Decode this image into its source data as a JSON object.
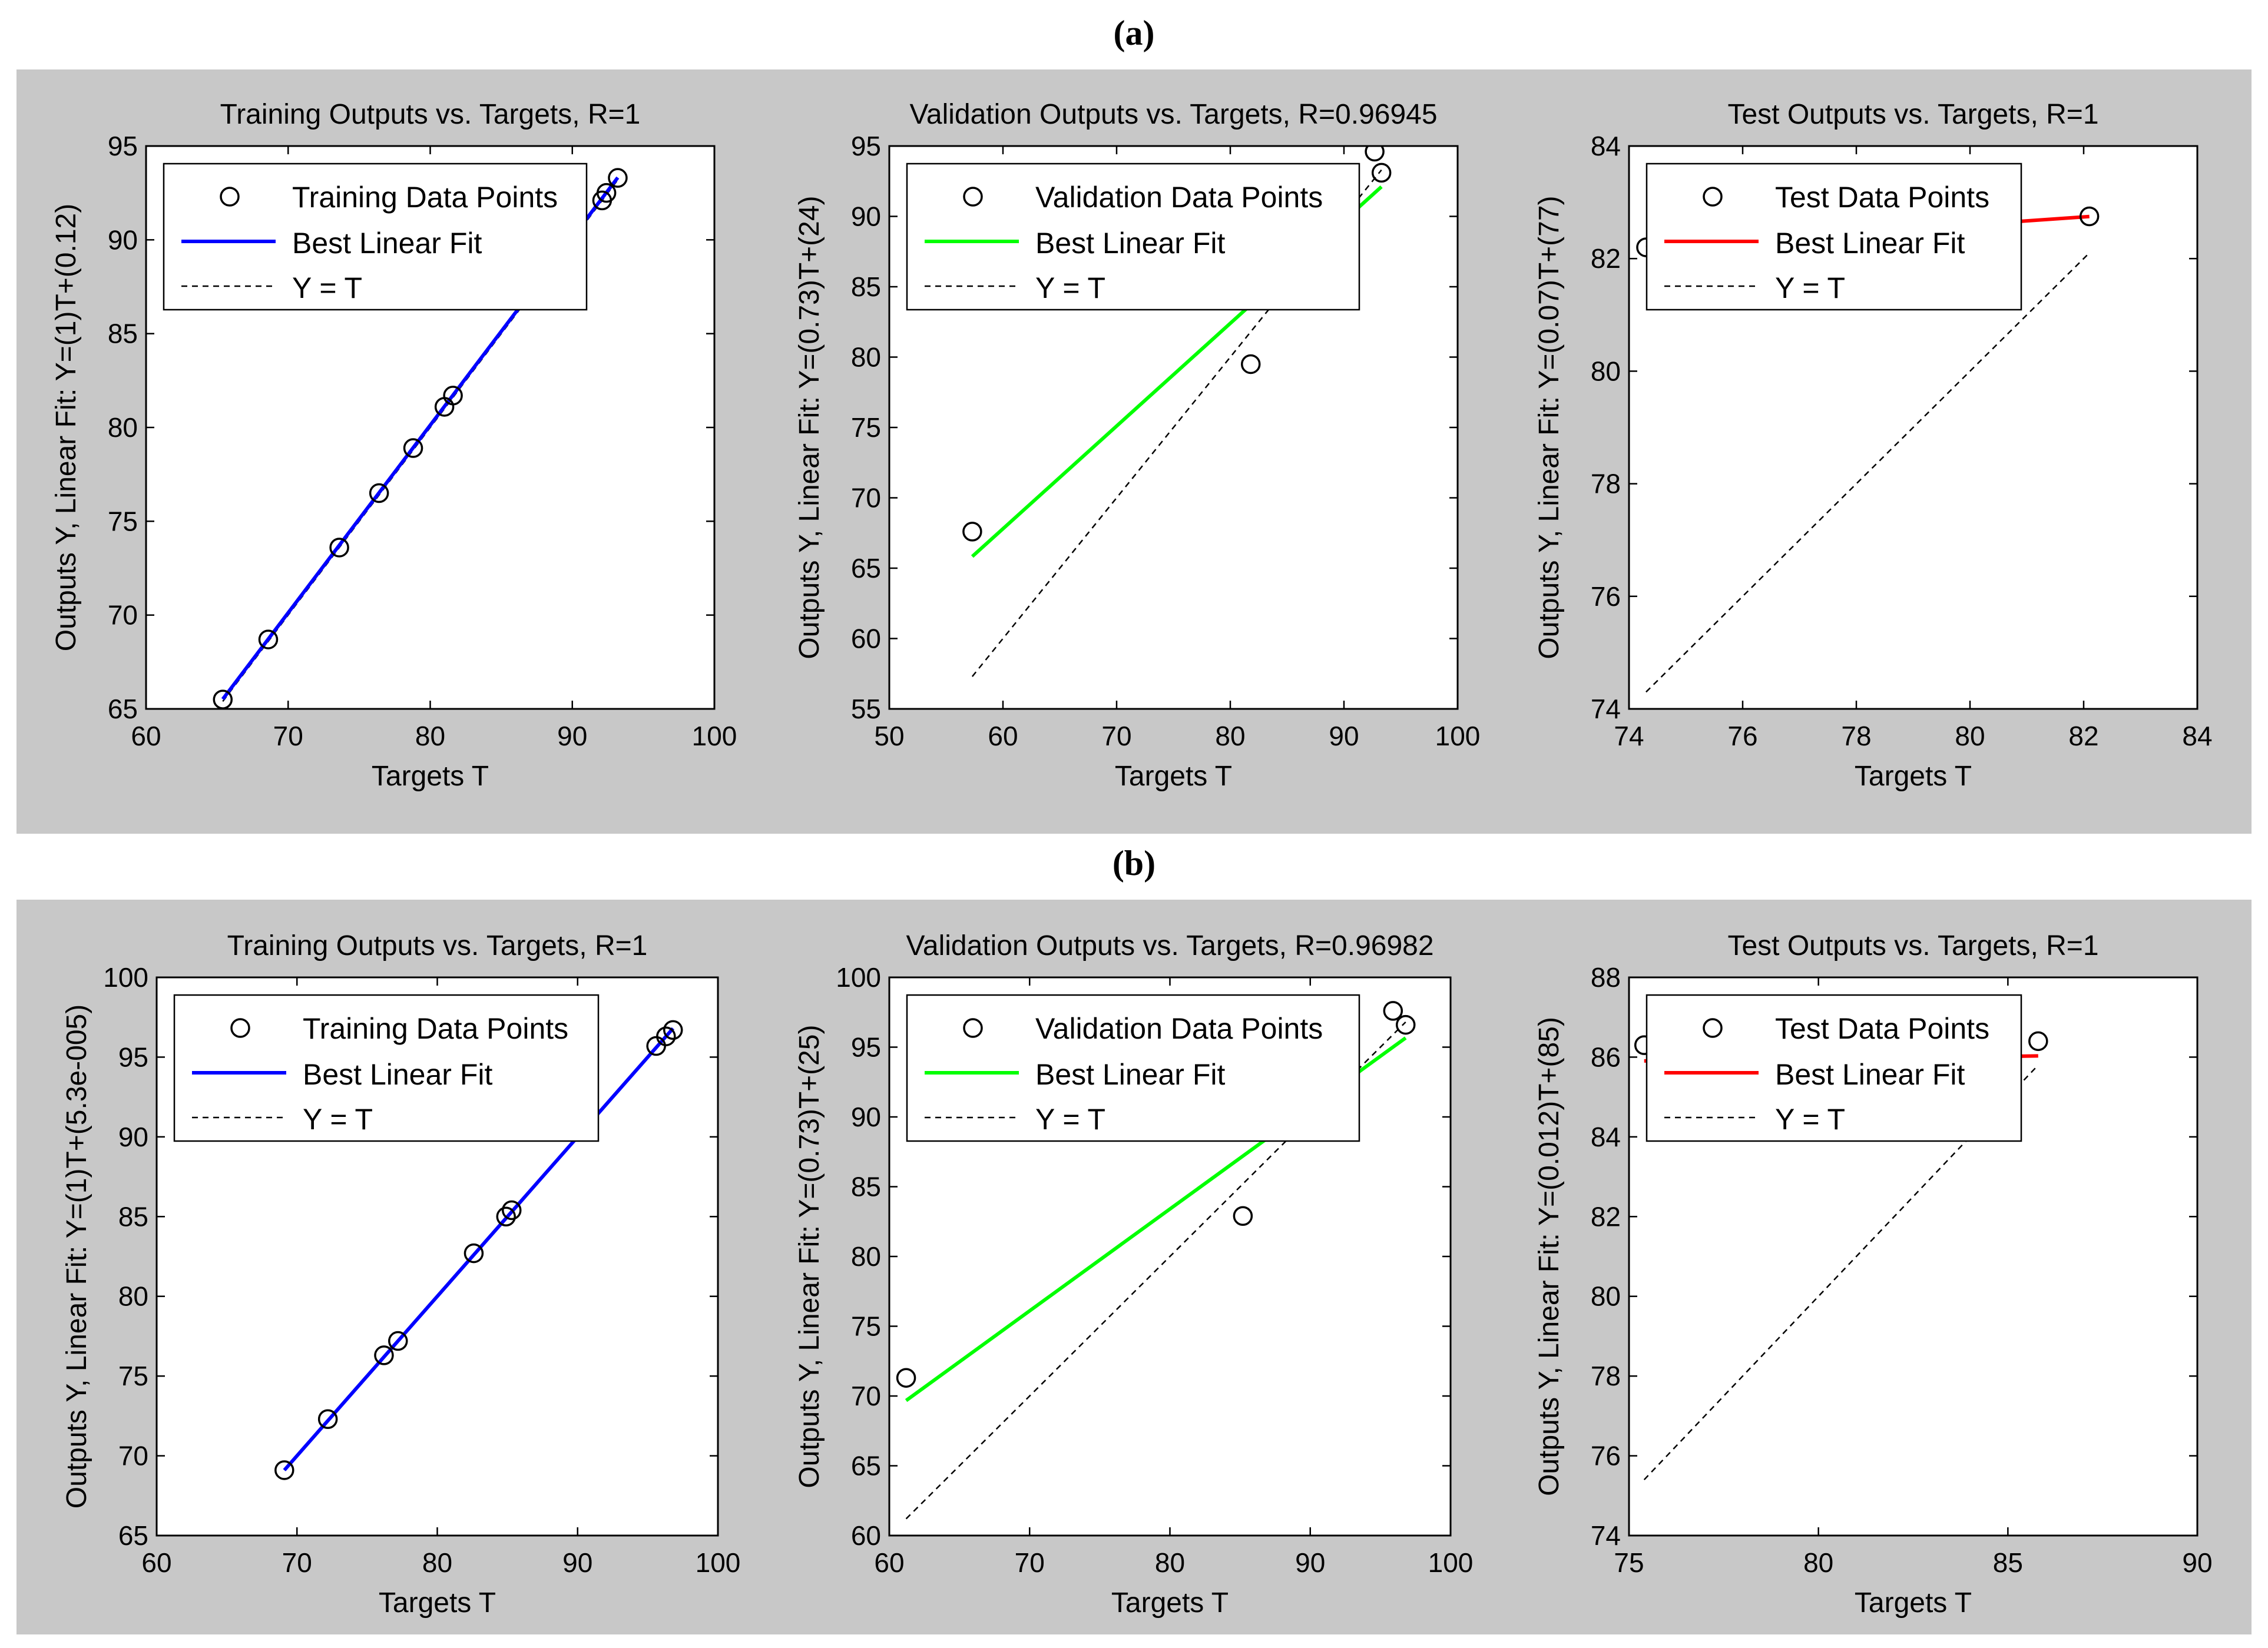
{
  "figure": {
    "panel_a_label": "(a)",
    "panel_b_label": "(b)",
    "colors": {
      "background": "#c8c8c8",
      "axes": "#ffffff",
      "training": "#0000ff",
      "validation": "#00ff00",
      "test": "#ff0000",
      "marker": "#000000"
    }
  },
  "chart_data": [
    {
      "panel": "a",
      "type": "scatter",
      "title": "Training Outputs vs. Targets, R=1",
      "xlabel": "Targets T",
      "ylabel": "Outputs Y,  Linear Fit: Y=(1)T+(0.12)",
      "xlim": [
        60,
        100
      ],
      "ylim": [
        65,
        95
      ],
      "xticks": [
        "60",
        "70",
        "80",
        "90",
        "100"
      ],
      "yticks": [
        "65",
        "70",
        "75",
        "80",
        "85",
        "90",
        "95"
      ],
      "legend": [
        "Training Data Points",
        "Best Linear Fit",
        "Y = T"
      ],
      "legend_position": "top-left",
      "fit_color": "#0000ff",
      "fit": {
        "slope": 1,
        "intercept": 0.12
      },
      "fit_x": [
        65.4,
        93.2
      ],
      "points": [
        [
          65.4,
          65.5
        ],
        [
          68.6,
          68.7
        ],
        [
          73.6,
          73.6
        ],
        [
          76.4,
          76.5
        ],
        [
          78.8,
          78.9
        ],
        [
          81,
          81.1
        ],
        [
          81.6,
          81.7
        ],
        [
          92.1,
          92.1
        ],
        [
          92.4,
          92.5
        ],
        [
          93.2,
          93.3
        ]
      ]
    },
    {
      "panel": "a",
      "type": "scatter",
      "title": "Validation Outputs vs. Targets, R=0.96945",
      "xlabel": "Targets T",
      "ylabel": "Outputs Y,  Linear Fit: Y=(0.73)T+(24)",
      "xlim": [
        50,
        100
      ],
      "ylim": [
        55,
        95
      ],
      "xticks": [
        "50",
        "60",
        "70",
        "80",
        "90",
        "100"
      ],
      "yticks": [
        "55",
        "60",
        "65",
        "70",
        "75",
        "80",
        "85",
        "90",
        "95"
      ],
      "legend": [
        "Validation Data Points",
        "Best Linear Fit",
        "Y = T"
      ],
      "legend_position": "top-left",
      "fit_color": "#00ff00",
      "fit": {
        "slope": 0.73,
        "intercept": 24
      },
      "fit_x": [
        57.3,
        93.3
      ],
      "points": [
        [
          57.3,
          67.6
        ],
        [
          81.8,
          79.5
        ],
        [
          92.7,
          94.6
        ],
        [
          93.3,
          93.1
        ]
      ]
    },
    {
      "panel": "a",
      "type": "scatter",
      "title": "Test Outputs vs. Targets, R=1",
      "xlabel": "Targets T",
      "ylabel": "Outputs Y,  Linear Fit: Y=(0.07)T+(77)",
      "xlim": [
        74,
        84
      ],
      "ylim": [
        74,
        84
      ],
      "xticks": [
        "74",
        "76",
        "78",
        "80",
        "82",
        "84"
      ],
      "yticks": [
        "74",
        "76",
        "78",
        "80",
        "82",
        "84"
      ],
      "legend": [
        "Test Data Points",
        "Best Linear Fit",
        "Y = T"
      ],
      "legend_position": "top-left",
      "fit_color": "#ff0000",
      "fit": {
        "slope": 0.07,
        "intercept": 77
      },
      "fit_x": [
        74.3,
        82.1
      ],
      "points": [
        [
          74.3,
          82.2
        ],
        [
          82.1,
          82.75
        ]
      ]
    },
    {
      "panel": "b",
      "type": "scatter",
      "title": "Training Outputs vs. Targets, R=1",
      "xlabel": "Targets T",
      "ylabel": "Outputs Y,  Linear Fit: Y=(1)T+(5.3e-005)",
      "xlim": [
        60,
        100
      ],
      "ylim": [
        65,
        100
      ],
      "xticks": [
        "60",
        "70",
        "80",
        "90",
        "100"
      ],
      "yticks": [
        "65",
        "70",
        "75",
        "80",
        "85",
        "90",
        "95",
        "100"
      ],
      "legend": [
        "Training Data Points",
        "Best Linear Fit",
        "Y = T"
      ],
      "legend_position": "top-left",
      "fit_color": "#0000ff",
      "fit": {
        "slope": 1,
        "intercept": 5.3e-05
      },
      "fit_x": [
        69.1,
        96.8
      ],
      "points": [
        [
          69.1,
          69.1
        ],
        [
          72.2,
          72.3
        ],
        [
          76.2,
          76.3
        ],
        [
          77.2,
          77.2
        ],
        [
          82.6,
          82.7
        ],
        [
          84.9,
          85.0
        ],
        [
          85.3,
          85.4
        ],
        [
          95.6,
          95.7
        ],
        [
          96.3,
          96.3
        ],
        [
          96.8,
          96.7
        ]
      ]
    },
    {
      "panel": "b",
      "type": "scatter",
      "title": "Validation Outputs vs. Targets, R=0.96982",
      "xlabel": "Targets T",
      "ylabel": "Outputs Y,  Linear Fit: Y=(0.73)T+(25)",
      "xlim": [
        60,
        100
      ],
      "ylim": [
        60,
        100
      ],
      "xticks": [
        "60",
        "70",
        "80",
        "90",
        "100"
      ],
      "yticks": [
        "60",
        "65",
        "70",
        "75",
        "80",
        "85",
        "90",
        "95",
        "100"
      ],
      "legend": [
        "Validation Data Points",
        "Best Linear Fit",
        "Y = T"
      ],
      "legend_position": "top-left",
      "fit_color": "#00ff00",
      "fit": {
        "slope": 0.73,
        "intercept": 25
      },
      "fit_x": [
        61.2,
        96.8
      ],
      "points": [
        [
          61.2,
          71.3
        ],
        [
          85.2,
          82.9
        ],
        [
          95.9,
          97.6
        ],
        [
          96.8,
          96.6
        ]
      ]
    },
    {
      "panel": "b",
      "type": "scatter",
      "title": "Test Outputs vs. Targets, R=1",
      "xlabel": "Targets T",
      "ylabel": "Outputs Y,  Linear Fit: Y=(0.012)T+(85)",
      "xlim": [
        75,
        90
      ],
      "ylim": [
        74,
        88
      ],
      "xticks": [
        "75",
        "80",
        "85",
        "90"
      ],
      "yticks": [
        "74",
        "76",
        "78",
        "80",
        "82",
        "84",
        "86",
        "88"
      ],
      "legend": [
        "Test Data Points",
        "Best Linear Fit",
        "Y = T"
      ],
      "legend_position": "top-left",
      "fit_color": "#ff0000",
      "fit": {
        "slope": 0.012,
        "intercept": 85
      },
      "fit_x": [
        75.4,
        85.8
      ],
      "points": [
        [
          75.4,
          86.3
        ],
        [
          85.8,
          86.4
        ]
      ]
    }
  ]
}
